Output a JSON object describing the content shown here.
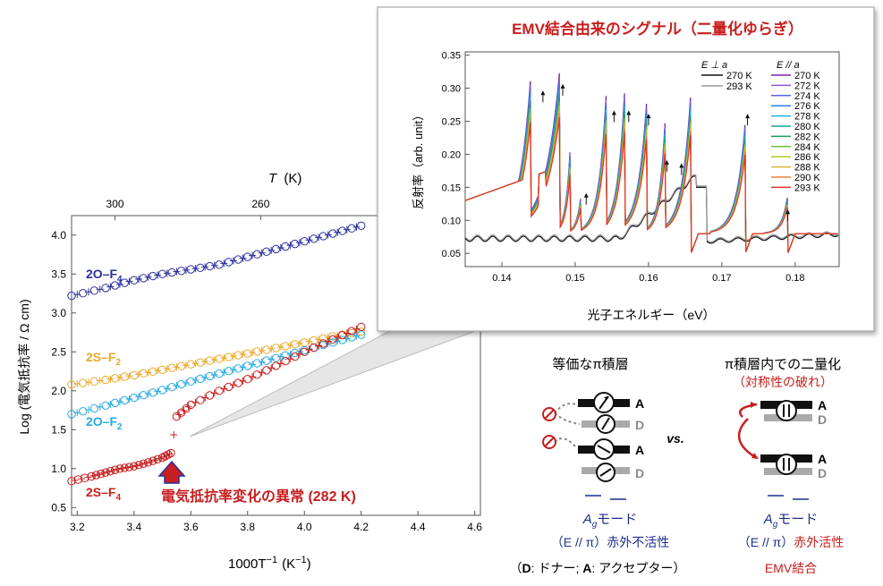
{
  "colors": {
    "o_f4": "#2b2f9c",
    "s_f2": "#e8a92a",
    "o_f2": "#27a9e1",
    "s_f4": "#c81e1e",
    "accent_red": "#c81e1e",
    "navy": "#1d2e8c",
    "gray_d": "#8a8a8a"
  },
  "chart_data": [
    {
      "type": "scatter",
      "xlabel": "1000T",
      "xlabel_exp": "−1",
      "xlabel_unit": "(K",
      "xlabel_unit_end": ")",
      "ylabel": "Log (電気抵抗率  / Ω cm)",
      "top_axis_label": "T",
      "top_axis_unit": "(K)",
      "top_ticks": [
        {
          "label": "300",
          "x": 3.333
        },
        {
          "label": "260",
          "x": 3.846
        }
      ],
      "xlim": [
        3.18,
        4.62
      ],
      "ylim": [
        0.4,
        4.25
      ],
      "xticks": [
        "3.2",
        "3.4",
        "3.6",
        "3.8",
        "4.0",
        "4.2",
        "4.4",
        "4.6"
      ],
      "yticks": [
        "0.5",
        "1.0",
        "1.5",
        "2.0",
        "2.5",
        "3.0",
        "3.5",
        "4.0"
      ],
      "series": [
        {
          "name": "2O–F",
          "sub": "4",
          "color": "#2b2f9c",
          "points": [
            [
              3.18,
              3.22
            ],
            [
              3.3,
              3.32
            ],
            [
              3.4,
              3.42
            ],
            [
              3.5,
              3.5
            ],
            [
              3.6,
              3.56
            ],
            [
              3.7,
              3.62
            ],
            [
              3.8,
              3.72
            ],
            [
              3.9,
              3.82
            ],
            [
              4.0,
              3.92
            ],
            [
              4.1,
              4.02
            ],
            [
              4.2,
              4.12
            ]
          ]
        },
        {
          "name": "2S–F",
          "sub": "2",
          "color": "#e8a92a",
          "points": [
            [
              3.18,
              2.08
            ],
            [
              3.3,
              2.14
            ],
            [
              3.4,
              2.2
            ],
            [
              3.5,
              2.27
            ],
            [
              3.6,
              2.34
            ],
            [
              3.7,
              2.41
            ],
            [
              3.8,
              2.48
            ],
            [
              3.9,
              2.55
            ],
            [
              4.0,
              2.62
            ],
            [
              4.1,
              2.7
            ],
            [
              4.2,
              2.76
            ]
          ]
        },
        {
          "name": "2O–F",
          "sub": "2",
          "color": "#27a9e1",
          "points": [
            [
              3.18,
              1.7
            ],
            [
              3.3,
              1.81
            ],
            [
              3.4,
              1.91
            ],
            [
              3.5,
              2.01
            ],
            [
              3.6,
              2.12
            ],
            [
              3.7,
              2.22
            ],
            [
              3.8,
              2.32
            ],
            [
              3.9,
              2.42
            ],
            [
              4.0,
              2.52
            ],
            [
              4.1,
              2.62
            ],
            [
              4.2,
              2.72
            ]
          ]
        },
        {
          "name": "2S–F",
          "sub": "4",
          "color": "#c81e1e",
          "points": [
            [
              3.18,
              0.84
            ],
            [
              3.25,
              0.9
            ],
            [
              3.3,
              0.95
            ],
            [
              3.35,
              1.0
            ],
            [
              3.4,
              1.03
            ],
            [
              3.45,
              1.08
            ],
            [
              3.5,
              1.14
            ],
            [
              3.53,
              1.2
            ],
            [
              3.55,
              1.67
            ],
            [
              3.6,
              1.82
            ],
            [
              3.7,
              2.0
            ],
            [
              3.8,
              2.15
            ],
            [
              3.9,
              2.32
            ],
            [
              4.0,
              2.5
            ],
            [
              4.1,
              2.66
            ],
            [
              4.2,
              2.82
            ]
          ]
        }
      ],
      "annotation": "電気抵抗率変化の異常 (282 K)"
    },
    {
      "type": "line",
      "title": "EMV結合由来のシグナル（二量化ゆらぎ）",
      "xlabel": "光子エネルギー（eV）",
      "ylabel": "反射率（arb. unit）",
      "xlim": [
        0.135,
        0.186
      ],
      "ylim": [
        0.03,
        0.355
      ],
      "xticks": [
        "0.14",
        "0.15",
        "0.16",
        "0.17",
        "0.18"
      ],
      "yticks": [
        "0.05",
        "0.10",
        "0.15",
        "0.20",
        "0.25",
        "0.30",
        "0.35"
      ],
      "legend_perp_title": "E ⊥ a",
      "legend_par_title": "E // a",
      "perp_series": [
        {
          "name": "270 K",
          "color": "#111111"
        },
        {
          "name": "293 K",
          "color": "#9a9a9a"
        }
      ],
      "par_series": [
        {
          "name": "270 K",
          "color": "#7a1fa2"
        },
        {
          "name": "272 K",
          "color": "#8e5ad6"
        },
        {
          "name": "274 K",
          "color": "#5a63e0"
        },
        {
          "name": "276 K",
          "color": "#2f7ff0"
        },
        {
          "name": "278 K",
          "color": "#22b1e6"
        },
        {
          "name": "280 K",
          "color": "#1aa3a0"
        },
        {
          "name": "282 K",
          "color": "#1f9a5a"
        },
        {
          "name": "284 K",
          "color": "#6cbf3a"
        },
        {
          "name": "286 K",
          "color": "#b4c82b"
        },
        {
          "name": "288 K",
          "color": "#e2b531"
        },
        {
          "name": "290 K",
          "color": "#f0803a"
        },
        {
          "name": "293 K",
          "color": "#e0342b"
        }
      ],
      "arrows_x": [
        0.1456,
        0.1483,
        0.1515,
        0.1553,
        0.1573,
        0.16,
        0.1625,
        0.1645,
        0.1735,
        0.179
      ]
    }
  ],
  "diagram": {
    "left_title": "等価なπ積層",
    "right_title": "π積層内での二量化",
    "right_subtitle": "（対称性の破れ）",
    "vs": "vs.",
    "label_A": "A",
    "label_D": "D",
    "left_mode": "A",
    "left_mode_sub": "g",
    "left_mode_text": "モード",
    "right_mode": "A",
    "right_mode_sub": "g",
    "right_mode_text": "モード",
    "left_pol": "（E // π）",
    "left_pol_result": "赤外不活性",
    "right_pol": "（E // π）",
    "right_pol_result": "赤外活性",
    "emv": "EMV結合",
    "footnote_open": "（",
    "footnote_D": "D",
    "footnote_mid": ": ドナー; ",
    "footnote_A": "A",
    "footnote_end": ": アクセプター）"
  }
}
